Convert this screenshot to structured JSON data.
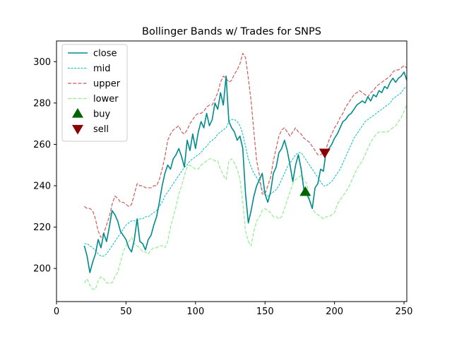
{
  "chart_data": {
    "type": "line",
    "title": "Bollinger Bands w/ Trades for SNPS",
    "xlabel": "",
    "ylabel": "",
    "xlim": [
      0,
      252
    ],
    "ylim": [
      184,
      310
    ],
    "x_ticks": [
      0,
      50,
      100,
      150,
      200,
      250
    ],
    "y_ticks": [
      200,
      220,
      240,
      260,
      280,
      300
    ],
    "grid": false,
    "legend_position": "top-left",
    "series": [
      {
        "name": "close",
        "style": "solid",
        "color": "#008b8b",
        "x": [
          20,
          22,
          24,
          26,
          28,
          30,
          32,
          34,
          36,
          38,
          40,
          42,
          44,
          46,
          48,
          50,
          52,
          54,
          56,
          58,
          60,
          62,
          64,
          66,
          68,
          70,
          72,
          74,
          76,
          78,
          80,
          82,
          84,
          86,
          88,
          90,
          92,
          94,
          96,
          98,
          100,
          102,
          104,
          106,
          108,
          110,
          112,
          114,
          116,
          118,
          120,
          122,
          124,
          126,
          128,
          130,
          132,
          134,
          136,
          138,
          140,
          142,
          144,
          146,
          148,
          150,
          152,
          154,
          156,
          158,
          160,
          162,
          164,
          166,
          168,
          170,
          172,
          174,
          176,
          178,
          180,
          182,
          184,
          186,
          188,
          190,
          192,
          194,
          196,
          198,
          200,
          202,
          204,
          206,
          208,
          210,
          212,
          214,
          216,
          218,
          220,
          222,
          224,
          226,
          228,
          230,
          232,
          234,
          236,
          238,
          240,
          242,
          244,
          246,
          248,
          250,
          252
        ],
        "values": [
          211,
          206,
          198,
          203,
          207,
          214,
          210,
          217,
          213,
          220,
          228,
          226,
          223,
          218,
          216,
          214,
          210,
          208,
          214,
          224,
          213,
          212,
          209,
          214,
          216,
          221,
          225,
          232,
          240,
          246,
          250,
          248,
          253,
          255,
          258,
          254,
          249,
          262,
          257,
          265,
          258,
          266,
          271,
          268,
          275,
          269,
          272,
          280,
          277,
          285,
          279,
          293,
          271,
          268,
          266,
          262,
          264,
          258,
          236,
          222,
          228,
          235,
          240,
          243,
          246,
          236,
          232,
          237,
          246,
          249,
          256,
          258,
          262,
          257,
          250,
          242,
          250,
          255,
          248,
          238,
          236,
          233,
          229,
          239,
          241,
          248,
          247,
          257,
          258,
          260,
          263,
          265,
          268,
          271,
          272,
          274,
          275,
          277,
          279,
          280,
          281,
          280,
          283,
          281,
          284,
          283,
          286,
          285,
          288,
          287,
          290,
          292,
          290,
          292,
          293,
          295,
          291
        ]
      },
      {
        "name": "mid",
        "style": "dashed",
        "color": "#00bfbf",
        "x": [
          20,
          22,
          24,
          26,
          28,
          30,
          32,
          34,
          36,
          38,
          40,
          42,
          44,
          46,
          48,
          50,
          52,
          54,
          56,
          58,
          60,
          62,
          64,
          66,
          68,
          70,
          72,
          74,
          76,
          78,
          80,
          82,
          84,
          86,
          88,
          90,
          92,
          94,
          96,
          98,
          100,
          102,
          104,
          106,
          108,
          110,
          112,
          114,
          116,
          118,
          120,
          122,
          124,
          126,
          128,
          130,
          132,
          134,
          136,
          138,
          140,
          142,
          144,
          146,
          148,
          150,
          152,
          154,
          156,
          158,
          160,
          162,
          164,
          166,
          168,
          170,
          172,
          174,
          176,
          178,
          180,
          182,
          184,
          186,
          188,
          190,
          192,
          194,
          196,
          198,
          200,
          202,
          204,
          206,
          208,
          210,
          212,
          214,
          216,
          218,
          220,
          222,
          224,
          226,
          228,
          230,
          232,
          234,
          236,
          238,
          240,
          242,
          244,
          246,
          248,
          250,
          252
        ],
        "values": [
          212,
          212,
          211,
          210,
          209,
          207,
          206,
          206,
          207,
          209,
          211,
          213,
          215,
          217,
          219,
          221,
          222,
          223,
          223,
          223,
          224,
          224,
          225,
          225,
          226,
          227,
          228,
          230,
          232,
          235,
          237,
          239,
          241,
          243,
          245,
          247,
          249,
          250,
          252,
          253,
          254,
          255,
          256,
          258,
          259,
          261,
          262,
          263,
          265,
          266,
          267,
          268,
          271,
          272,
          272,
          271,
          269,
          265,
          259,
          253,
          249,
          246,
          244,
          242,
          238,
          236,
          235,
          236,
          237,
          238,
          240,
          243,
          246,
          249,
          251,
          253,
          255,
          256,
          256,
          254,
          252,
          250,
          248,
          246,
          244,
          242,
          240,
          240,
          241,
          242,
          244,
          246,
          248,
          251,
          254,
          257,
          260,
          263,
          265,
          267,
          269,
          271,
          272,
          273,
          274,
          275,
          276,
          277,
          278,
          279,
          280,
          282,
          283,
          284,
          285,
          287,
          288
        ]
      },
      {
        "name": "upper",
        "style": "dashed",
        "color": "#cd5c5c",
        "x": [
          20,
          22,
          24,
          26,
          28,
          30,
          32,
          34,
          36,
          38,
          40,
          42,
          44,
          46,
          48,
          50,
          52,
          54,
          56,
          58,
          60,
          62,
          64,
          66,
          68,
          70,
          72,
          74,
          76,
          78,
          80,
          82,
          84,
          86,
          88,
          90,
          92,
          94,
          96,
          98,
          100,
          102,
          104,
          106,
          108,
          110,
          112,
          114,
          116,
          118,
          120,
          122,
          124,
          126,
          128,
          130,
          132,
          134,
          136,
          138,
          140,
          142,
          144,
          146,
          148,
          150,
          152,
          154,
          156,
          158,
          160,
          162,
          164,
          166,
          168,
          170,
          172,
          174,
          176,
          178,
          180,
          182,
          184,
          186,
          188,
          190,
          192,
          194,
          196,
          198,
          200,
          202,
          204,
          206,
          208,
          210,
          212,
          214,
          216,
          218,
          220,
          222,
          224,
          226,
          228,
          230,
          232,
          234,
          236,
          238,
          240,
          242,
          244,
          246,
          248,
          250,
          252
        ],
        "values": [
          230,
          229,
          229,
          228,
          224,
          218,
          215,
          217,
          221,
          225,
          231,
          235,
          234,
          232,
          232,
          231,
          230,
          231,
          236,
          241,
          240,
          240,
          239,
          239,
          239,
          240,
          240,
          243,
          248,
          254,
          262,
          265,
          267,
          268,
          269,
          266,
          265,
          267,
          270,
          272,
          274,
          275,
          275,
          276,
          278,
          279,
          279,
          282,
          285,
          290,
          293,
          292,
          290,
          291,
          294,
          296,
          299,
          304,
          302,
          292,
          281,
          266,
          252,
          245,
          236,
          236,
          240,
          244,
          252,
          258,
          264,
          267,
          268,
          266,
          264,
          266,
          268,
          266,
          265,
          263,
          262,
          261,
          259,
          257,
          255,
          255,
          256,
          258,
          262,
          265,
          268,
          270,
          273,
          275,
          278,
          280,
          282,
          284,
          285,
          286,
          285,
          284,
          283,
          285,
          286,
          288,
          289,
          290,
          291,
          292,
          293,
          295,
          296,
          296,
          297,
          298,
          297
        ]
      },
      {
        "name": "lower",
        "style": "dashed",
        "color": "#90ee90",
        "x": [
          20,
          22,
          24,
          26,
          28,
          30,
          32,
          34,
          36,
          38,
          40,
          42,
          44,
          46,
          48,
          50,
          52,
          54,
          56,
          58,
          60,
          62,
          64,
          66,
          68,
          70,
          72,
          74,
          76,
          78,
          80,
          82,
          84,
          86,
          88,
          90,
          92,
          94,
          96,
          98,
          100,
          102,
          104,
          106,
          108,
          110,
          112,
          114,
          116,
          118,
          120,
          122,
          124,
          126,
          128,
          130,
          132,
          134,
          136,
          138,
          140,
          142,
          144,
          146,
          148,
          150,
          152,
          154,
          156,
          158,
          160,
          162,
          164,
          166,
          168,
          170,
          172,
          174,
          176,
          178,
          180,
          182,
          184,
          186,
          188,
          190,
          192,
          194,
          196,
          198,
          200,
          202,
          204,
          206,
          208,
          210,
          212,
          214,
          216,
          218,
          220,
          222,
          224,
          226,
          228,
          230,
          232,
          234,
          236,
          238,
          240,
          242,
          244,
          246,
          248,
          250,
          252
        ],
        "values": [
          193,
          195,
          192,
          190,
          190,
          194,
          196,
          195,
          193,
          193,
          193,
          196,
          198,
          203,
          208,
          211,
          213,
          215,
          212,
          211,
          210,
          208,
          208,
          207,
          209,
          210,
          210,
          211,
          211,
          210,
          213,
          220,
          225,
          230,
          236,
          240,
          245,
          249,
          250,
          249,
          248,
          248,
          250,
          251,
          252,
          253,
          253,
          252,
          252,
          248,
          245,
          243,
          252,
          253,
          251,
          248,
          243,
          232,
          218,
          213,
          211,
          218,
          223,
          225,
          228,
          229,
          228,
          227,
          225,
          225,
          224,
          225,
          229,
          233,
          237,
          241,
          243,
          244,
          245,
          243,
          241,
          234,
          229,
          227,
          226,
          225,
          224,
          225,
          225,
          226,
          227,
          231,
          233,
          235,
          237,
          239,
          242,
          245,
          248,
          250,
          252,
          255,
          258,
          261,
          263,
          265,
          266,
          266,
          266,
          266,
          267,
          268,
          269,
          271,
          273,
          276,
          279
        ]
      }
    ],
    "markers": [
      {
        "name": "buy",
        "shape": "triangle-up",
        "color": "#006400",
        "points": [
          {
            "x": 179,
            "y": 237
          }
        ]
      },
      {
        "name": "sell",
        "shape": "triangle-down",
        "color": "#8b0000",
        "points": [
          {
            "x": 193,
            "y": 256
          }
        ]
      }
    ]
  }
}
